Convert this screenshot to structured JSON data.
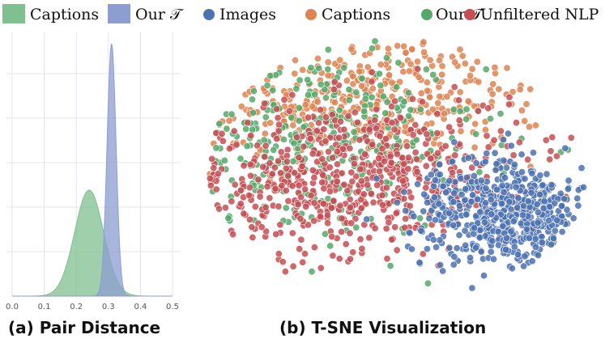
{
  "chart_data": [
    {
      "type": "area",
      "caption": "(a)  Pair Distance",
      "legend": [
        {
          "label": "Captions",
          "color": "#7fc08f"
        },
        {
          "label": "Our",
          "symbol": "𝒯",
          "color": "#8b9dd1"
        }
      ],
      "xlim": [
        0.0,
        0.5
      ],
      "xticks": [
        "0.0",
        "0.1",
        "0.2",
        "0.3",
        "0.4",
        "0.5"
      ],
      "grid": true,
      "series": [
        {
          "name": "Captions",
          "color": "#7fc08f",
          "mean": 0.24,
          "std": 0.045,
          "relative_peak": 0.42
        },
        {
          "name": "Our 𝒯",
          "color": "#8b9dd1",
          "mean": 0.31,
          "std": 0.014,
          "relative_peak": 1.0
        }
      ]
    },
    {
      "type": "scatter",
      "caption": "(b) T-SNE Visualization",
      "legend": [
        {
          "label": "Images",
          "color": "#4c72b0"
        },
        {
          "label": "Captions",
          "color": "#dd8452"
        },
        {
          "label": "Our",
          "symbol": "𝒯",
          "color": "#55a868"
        },
        {
          "label": "Unfiltered NLP",
          "color": "#c44e52"
        }
      ],
      "series": [
        {
          "name": "Images",
          "color": "#4c72b0",
          "count": 600,
          "center": [
            0.62,
            -0.35
          ],
          "spread": [
            0.26,
            0.2
          ],
          "angle": -25
        },
        {
          "name": "Captions",
          "color": "#dd8452",
          "count": 380,
          "center": [
            -0.2,
            0.55
          ],
          "spread": [
            0.5,
            0.25
          ],
          "angle": 0
        },
        {
          "name": "Our 𝒯",
          "color": "#55a868",
          "count": 320,
          "center": [
            -0.45,
            0.2
          ],
          "spread": [
            0.45,
            0.35
          ],
          "angle": 0
        },
        {
          "name": "Unfiltered NLP",
          "color": "#c44e52",
          "count": 600,
          "center": [
            -0.3,
            -0.05
          ],
          "spread": [
            0.5,
            0.28
          ],
          "angle": 10
        }
      ]
    }
  ]
}
